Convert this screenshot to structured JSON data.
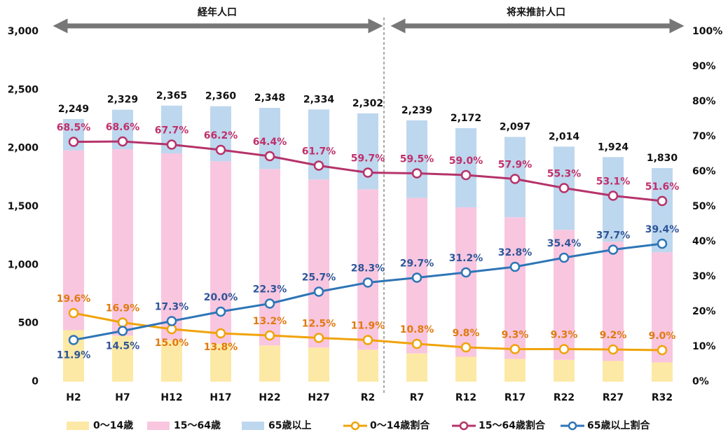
{
  "chart_data": {
    "type": "bar_line",
    "headers": [
      "経年人口",
      "将来推計人口"
    ],
    "categories": [
      "H2",
      "H7",
      "H12",
      "H17",
      "H22",
      "H27",
      "R2",
      "R7",
      "R12",
      "R17",
      "R22",
      "R27",
      "R32"
    ],
    "total_labels": [
      "2,249",
      "2,329",
      "2,365",
      "2,360",
      "2,348",
      "2,334",
      "2,302",
      "2,239",
      "2,172",
      "2,097",
      "2,014",
      "1,924",
      "1,830"
    ],
    "series": [
      {
        "name": "0～14歳",
        "color": "#fde9a6",
        "values": [
          441,
          394,
          355,
          326,
          310,
          292,
          274,
          242,
          213,
          195,
          187,
          177,
          165
        ]
      },
      {
        "name": "15～64歳",
        "color": "#f9c6e0",
        "values": [
          1541,
          1598,
          1601,
          1562,
          1512,
          1440,
          1374,
          1332,
          1281,
          1214,
          1114,
          1022,
          944
        ]
      },
      {
        "name": "65歳以上",
        "color": "#bdd7ee",
        "values": [
          268,
          338,
          409,
          472,
          524,
          600,
          651,
          665,
          678,
          688,
          713,
          725,
          721
        ]
      },
      {
        "name": "0～14歳割合",
        "color": "#f0a30a",
        "label_color": "#e07a10",
        "axis": "y2",
        "values": [
          19.6,
          16.9,
          15.0,
          13.8,
          13.2,
          12.5,
          11.9,
          10.8,
          9.8,
          9.3,
          9.3,
          9.2,
          9.0
        ],
        "value_labels": [
          "19.6%",
          "16.9%",
          "15.0%",
          "13.8%",
          "13.2%",
          "12.5%",
          "11.9%",
          "10.8%",
          "9.8%",
          "9.3%",
          "9.3%",
          "9.2%",
          "9.0%"
        ]
      },
      {
        "name": "15～64歳割合",
        "color": "#b5336a",
        "label_color": "#c0306a",
        "axis": "y2",
        "values": [
          68.5,
          68.6,
          67.7,
          66.2,
          64.4,
          61.7,
          59.7,
          59.5,
          59.0,
          57.9,
          55.3,
          53.1,
          51.6
        ],
        "value_labels": [
          "68.5%",
          "68.6%",
          "67.7%",
          "66.2%",
          "64.4%",
          "61.7%",
          "59.7%",
          "59.5%",
          "59.0%",
          "57.9%",
          "55.3%",
          "53.1%",
          "51.6%"
        ]
      },
      {
        "name": "65歳以上割合",
        "color": "#2e75b6",
        "label_color": "#2f5597",
        "axis": "y2",
        "values": [
          11.9,
          14.5,
          17.3,
          20.0,
          22.3,
          25.7,
          28.3,
          29.7,
          31.2,
          32.8,
          35.4,
          37.7,
          39.4
        ],
        "value_labels": [
          "11.9%",
          "14.5%",
          "17.3%",
          "20.0%",
          "22.3%",
          "25.7%",
          "28.3%",
          "29.7%",
          "31.2%",
          "32.8%",
          "35.4%",
          "37.7%",
          "39.4%"
        ]
      }
    ],
    "ylim": [
      0,
      3000
    ],
    "yticks": [
      0,
      500,
      {
        "value": 1000,
        "label": "1,000"
      },
      {
        "value": 1500,
        "label": "1,500"
      },
      {
        "value": 2000,
        "label": "2,000"
      },
      {
        "value": 2500,
        "label": "2,500"
      },
      {
        "value": 3000,
        "label": "3,000"
      }
    ],
    "y2lim": [
      0,
      100
    ],
    "y2ticks": [
      {
        "value": 0,
        "label": "0%"
      },
      {
        "value": 10,
        "label": "10%"
      },
      {
        "value": 20,
        "label": "20%"
      },
      {
        "value": 30,
        "label": "30%"
      },
      {
        "value": 40,
        "label": "40%"
      },
      {
        "value": 50,
        "label": "50%"
      },
      {
        "value": 60,
        "label": "60%"
      },
      {
        "value": 70,
        "label": "70%"
      },
      {
        "value": 80,
        "label": "80%"
      },
      {
        "value": 90,
        "label": "90%"
      },
      {
        "value": 100,
        "label": "100%"
      }
    ]
  }
}
